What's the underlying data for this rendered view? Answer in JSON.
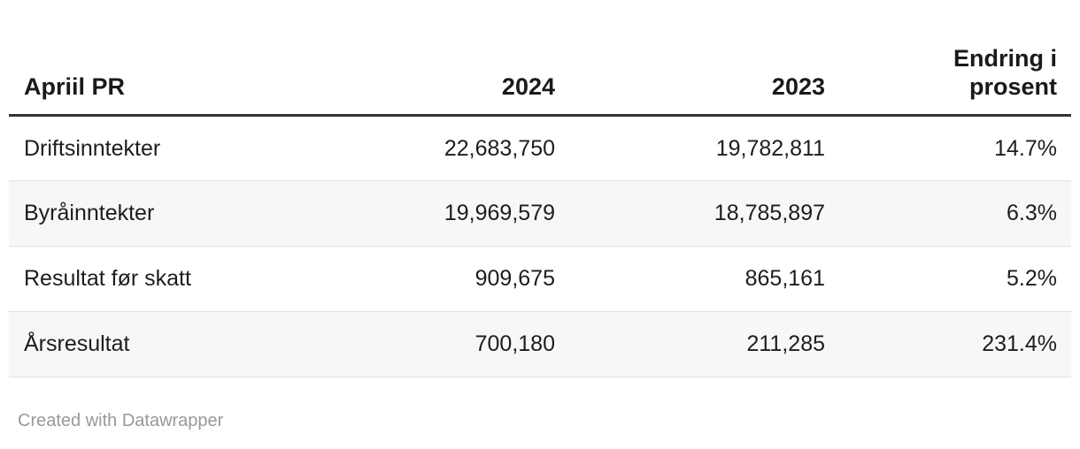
{
  "chart_data": {
    "type": "table",
    "title": "Apriil PR",
    "columns": [
      "Apriil PR",
      "2024",
      "2023",
      "Endring i prosent"
    ],
    "rows": [
      [
        "Driftsinntekter",
        "22,683,750",
        "19,782,811",
        "14.7%"
      ],
      [
        "Byråinntekter",
        "19,969,579",
        "18,785,897",
        "6.3%"
      ],
      [
        "Resultat før skatt",
        "909,675",
        "865,161",
        "5.2%"
      ],
      [
        "Årsresultat",
        "700,180",
        "211,285",
        "231.4%"
      ]
    ],
    "layout_hints": {
      "numeric_columns_align": "right",
      "zebra_striping": true,
      "header_rule": true
    }
  },
  "footer": {
    "attribution": "Created with Datawrapper"
  },
  "colors": {
    "text": "#1d1d1d",
    "header_rule": "#333333",
    "row_divider": "#e0e0e0",
    "zebra_row_bg": "#f7f7f7",
    "footer_text": "#999999",
    "background": "#ffffff"
  }
}
